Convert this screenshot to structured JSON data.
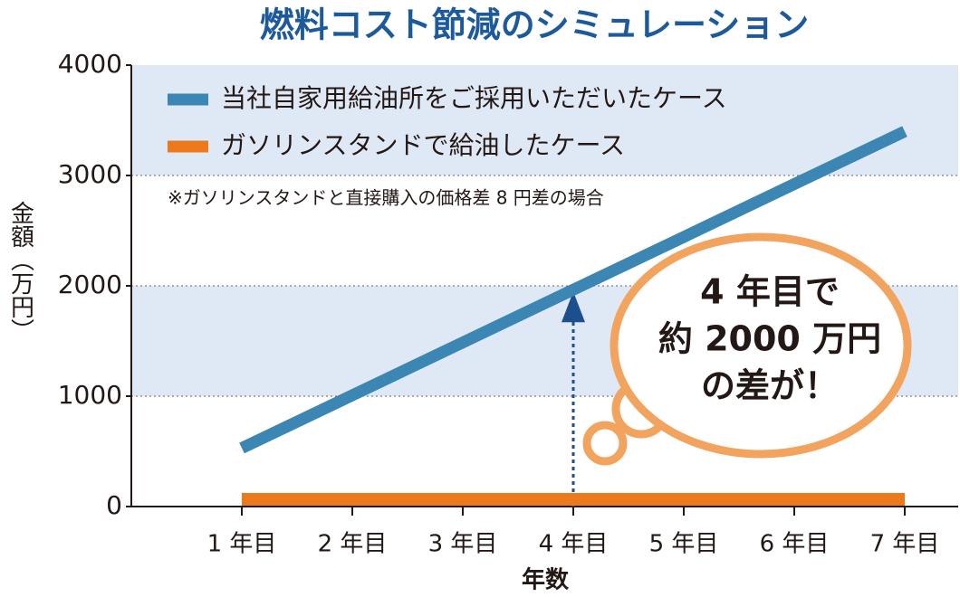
{
  "chart_data": {
    "type": "line",
    "title": "燃料コスト節減のシミュレーション",
    "x_label": "年数",
    "y_label": "金額（万円）",
    "note": "※ガソリンスタンドと直接購入の価格差 8 円差の場合",
    "annotation": [
      "4 年目で",
      "約 2000 万円",
      "の差が！"
    ],
    "categories": [
      "1 年目",
      "2 年目",
      "3 年目",
      "4 年目",
      "5 年目",
      "6 年目",
      "7 年目"
    ],
    "series": [
      {
        "name": "当社自家用給油所をご採用いただいたケース",
        "color": "#3b86b3",
        "values": [
          530,
          1008,
          1487,
          1965,
          2443,
          2922,
          3400
        ]
      },
      {
        "name": "ガソリンスタンドで給油したケース",
        "color": "#ec7a1c",
        "values": [
          0,
          0,
          0,
          0,
          0,
          0,
          0
        ]
      }
    ],
    "ylim": [
      0,
      4000
    ],
    "yticks": [
      0,
      1000,
      2000,
      3000,
      4000
    ],
    "grid": true
  }
}
